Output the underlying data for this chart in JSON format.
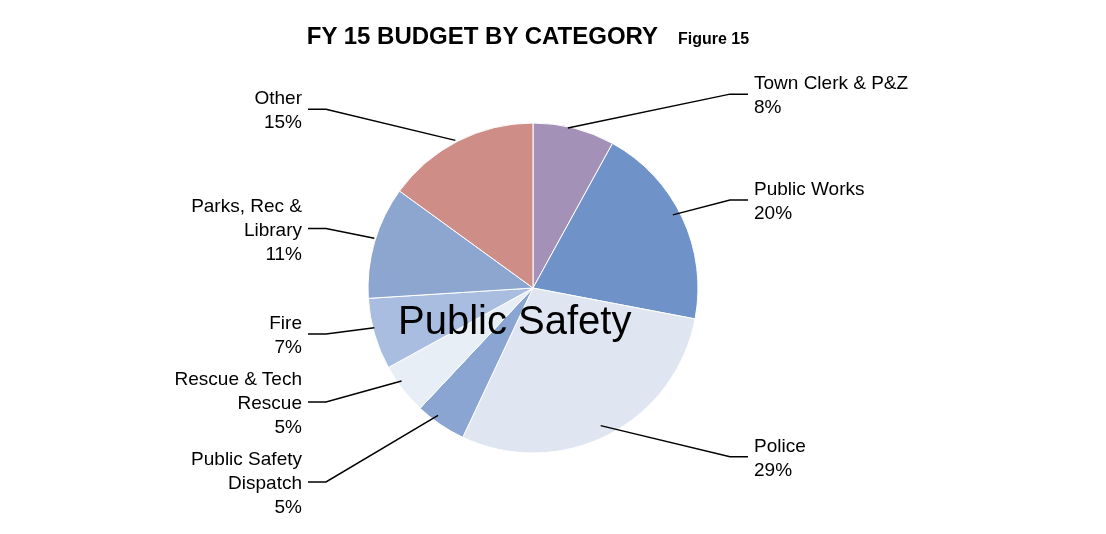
{
  "chart_data": {
    "type": "pie",
    "title": "FY 15 BUDGET BY CATEGORY",
    "subtitle": "Figure 15",
    "categories": [
      "Town Clerk & P&Z",
      "Public Works",
      "Police",
      "Public Safety Dispatch",
      "Rescue & Tech Rescue",
      "Fire",
      "Parks, Rec & Library",
      "Other"
    ],
    "values": [
      8,
      20,
      29,
      5,
      5,
      7,
      11,
      15
    ],
    "value_labels": [
      "8%",
      "20%",
      "29%",
      "5%",
      "5%",
      "7%",
      "11%",
      "15%"
    ],
    "colors": [
      "#a391b8",
      "#6f93c8",
      "#dfe6f1",
      "#8aa5d2",
      "#e8eef6",
      "#a9bde0",
      "#8da6d0",
      "#cf8d88"
    ],
    "annotations": [
      "Public Safety"
    ]
  }
}
